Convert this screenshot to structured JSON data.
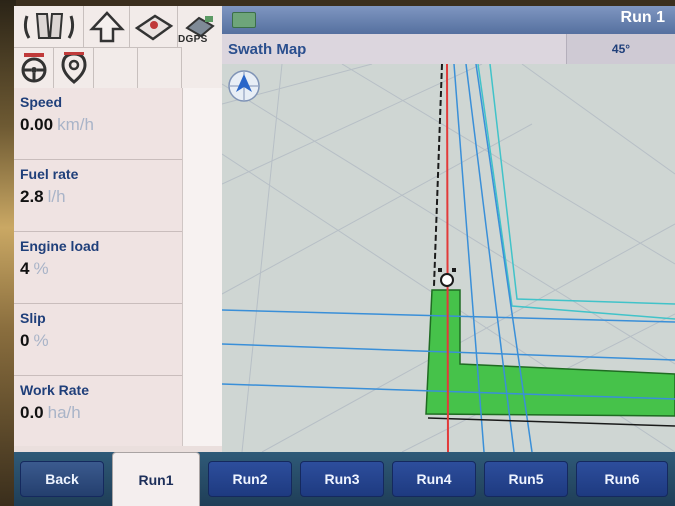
{
  "icon_bar": {
    "icons": [
      "implement-icon",
      "up-arrow-icon",
      "field-icon",
      "gps-receiver-icon",
      "steering-wheel-icon",
      "headland-icon"
    ],
    "dgps_label": "DGPS"
  },
  "readouts": [
    {
      "label": "Speed",
      "value": "0.00",
      "unit": "km/h"
    },
    {
      "label": "Fuel rate",
      "value": "2.8",
      "unit": "l/h"
    },
    {
      "label": "Engine load",
      "value": "4",
      "unit": "%"
    },
    {
      "label": "Slip",
      "value": "0",
      "unit": "%"
    },
    {
      "label": "Work Rate",
      "value": "0.0",
      "unit": "ha/h"
    }
  ],
  "map": {
    "run_title": "Run 1",
    "swath_label": "Swath Map",
    "angle": "45°",
    "colors": {
      "coverage": "#46c24a",
      "guidance": "#e23a3a",
      "swath_lines": "#3a8fd8",
      "cyan_lines": "#41c3c9"
    }
  },
  "tabs": {
    "back": "Back",
    "items": [
      "Run1",
      "Run2",
      "Run3",
      "Run4",
      "Run5",
      "Run6"
    ],
    "active": "Run1"
  }
}
